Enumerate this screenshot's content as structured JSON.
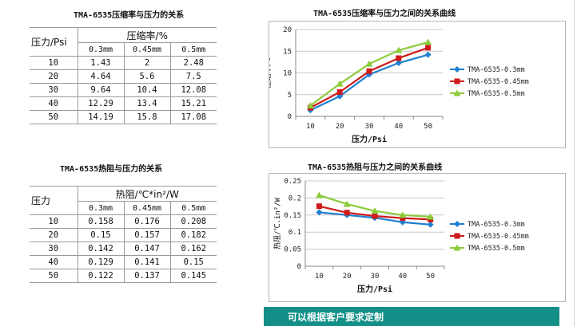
{
  "colors": {
    "s1": "#1f7fd1",
    "s2": "#cc1a1a",
    "s3": "#8ccc3a",
    "banner": "#138f88"
  },
  "table1": {
    "title": "TMA-6535压缩率与压力的关系",
    "row_header": "压力/Psi",
    "group_header": "压缩率/%",
    "sub_headers": [
      "0.3mm",
      "0.45mm",
      "0.5mm"
    ],
    "rows": [
      {
        "p": "10",
        "v": [
          "1.43",
          "2",
          "2.48"
        ]
      },
      {
        "p": "20",
        "v": [
          "4.64",
          "5.6",
          "7.5"
        ]
      },
      {
        "p": "30",
        "v": [
          "9.64",
          "10.4",
          "12.08"
        ]
      },
      {
        "p": "40",
        "v": [
          "12.29",
          "13.4",
          "15.21"
        ]
      },
      {
        "p": "50",
        "v": [
          "14.19",
          "15.8",
          "17.08"
        ]
      }
    ]
  },
  "table2": {
    "title": "TMA-6535热阻与压力的关系",
    "row_header": "压力",
    "group_header": "热阻/℃*in²/W",
    "sub_headers": [
      "0.3mm",
      "0.45mm",
      "0.5mm"
    ],
    "rows": [
      {
        "p": "10",
        "v": [
          "0.158",
          "0.176",
          "0.208"
        ]
      },
      {
        "p": "20",
        "v": [
          "0.15",
          "0.157",
          "0.182"
        ]
      },
      {
        "p": "30",
        "v": [
          "0.142",
          "0.147",
          "0.162"
        ]
      },
      {
        "p": "40",
        "v": [
          "0.129",
          "0.141",
          "0.15"
        ]
      },
      {
        "p": "50",
        "v": [
          "0.122",
          "0.137",
          "0.145"
        ]
      }
    ]
  },
  "chart_data": [
    {
      "type": "line",
      "title": "TMA-6535压缩率与压力之间的关系曲线",
      "xlabel": "压力/Psi",
      "ylabel": "压缩率/%",
      "x": [
        10,
        20,
        30,
        40,
        50
      ],
      "ylim": [
        0,
        20
      ],
      "yticks": [
        0,
        5,
        10,
        15,
        20
      ],
      "yticklabels": [
        "0",
        "5",
        "10",
        "15",
        "20"
      ],
      "grid": true,
      "legend": "right",
      "series": [
        {
          "name": "TMA-6535-0.3mm",
          "values": [
            1.43,
            4.64,
            9.64,
            12.29,
            14.19
          ],
          "marker": "diamond"
        },
        {
          "name": "TMA-6535-0.45mm",
          "values": [
            2,
            5.6,
            10.4,
            13.4,
            15.8
          ],
          "marker": "square"
        },
        {
          "name": "TMA-6535-0.5mm",
          "values": [
            2.48,
            7.5,
            12.08,
            15.21,
            17.08
          ],
          "marker": "triangle"
        }
      ]
    },
    {
      "type": "line",
      "title": "TMA-6535热阻与压力之间的关系曲线",
      "xlabel": "压力/Psi",
      "ylabel": "热阻/℃.in²/W",
      "x": [
        10,
        20,
        30,
        40,
        50
      ],
      "ylim": [
        0,
        0.25
      ],
      "yticks": [
        0,
        0.05,
        0.1,
        0.15,
        0.2,
        0.25
      ],
      "yticklabels": [
        "0",
        "0.05",
        "0.1",
        "0.15",
        "0.2",
        "0.25"
      ],
      "grid": true,
      "legend": "right",
      "series": [
        {
          "name": "TMA-6535-0.3mm",
          "values": [
            0.158,
            0.15,
            0.142,
            0.129,
            0.122
          ],
          "marker": "diamond"
        },
        {
          "name": "TMA-6535-0.45mm",
          "values": [
            0.176,
            0.157,
            0.147,
            0.141,
            0.137
          ],
          "marker": "square"
        },
        {
          "name": "TMA-6535-0.5mm",
          "values": [
            0.208,
            0.182,
            0.162,
            0.15,
            0.145
          ],
          "marker": "triangle"
        }
      ]
    }
  ],
  "banner": {
    "text": "可以根据客户要求定制"
  }
}
